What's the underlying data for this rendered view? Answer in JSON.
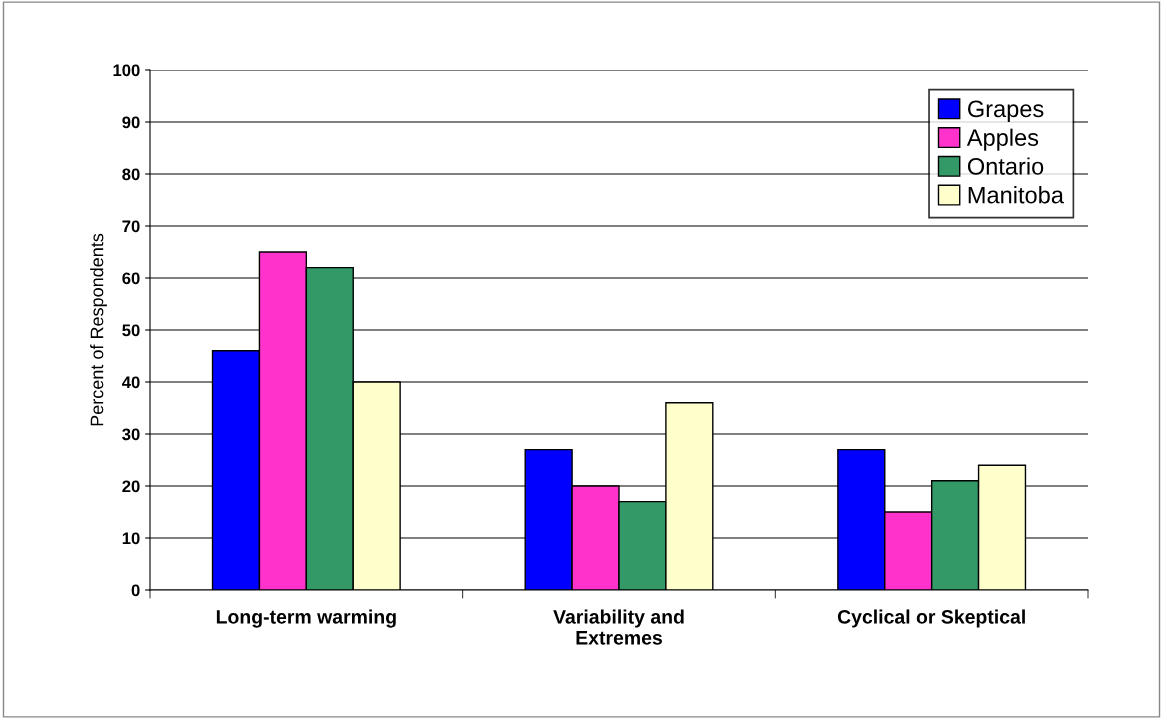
{
  "chart_data": {
    "type": "bar",
    "ylabel": "Percent of Respondents",
    "categories": [
      "Long-term warming",
      "Variability and\nExtremes",
      "Cyclical or Skeptical"
    ],
    "series": [
      {
        "name": "Grapes",
        "color": "#0000ff",
        "values": [
          46,
          27,
          27
        ]
      },
      {
        "name": "Apples",
        "color": "#ff33cc",
        "values": [
          65,
          20,
          15
        ]
      },
      {
        "name": "Ontario",
        "color": "#339966",
        "values": [
          62,
          17,
          21
        ]
      },
      {
        "name": "Manitoba",
        "color": "#ffffcc",
        "values": [
          40,
          36,
          24
        ]
      }
    ],
    "ylim": [
      0,
      100
    ],
    "yticks": [
      0,
      10,
      20,
      30,
      40,
      50,
      60,
      70,
      80,
      90,
      100
    ],
    "grid": "y",
    "legend": "top right"
  }
}
